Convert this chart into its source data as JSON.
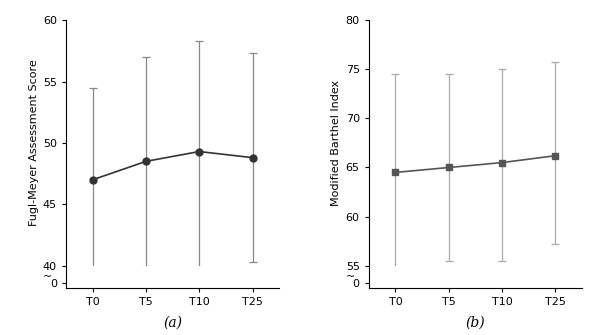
{
  "chart_a": {
    "x_labels": [
      "T0",
      "T5",
      "T10",
      "T25"
    ],
    "means": [
      47.0,
      48.5,
      49.3,
      48.8
    ],
    "errors_upper": [
      7.5,
      8.5,
      9.0,
      8.5
    ],
    "errors_lower": [
      8.5,
      8.5,
      9.5,
      8.5
    ],
    "ylabel": "Fugl-Meyer Assessment Score",
    "xlabel_label": "(a)",
    "ylim_main": [
      40,
      60
    ],
    "yticks_main": [
      40,
      45,
      50,
      55,
      60
    ],
    "marker": "o",
    "markersize": 5,
    "line_color": "#333333",
    "error_color": "#888888",
    "capsize": 3
  },
  "chart_b": {
    "x_labels": [
      "T0",
      "T5",
      "T10",
      "T25"
    ],
    "means": [
      64.5,
      65.0,
      65.5,
      66.2
    ],
    "errors_upper": [
      10.0,
      9.5,
      9.5,
      9.5
    ],
    "errors_lower": [
      10.0,
      9.5,
      10.0,
      9.0
    ],
    "ylabel": "Modified Barthel Index",
    "xlabel_label": "(b)",
    "ylim_main": [
      55,
      80
    ],
    "yticks_main": [
      55,
      60,
      65,
      70,
      75,
      80
    ],
    "marker": "s",
    "markersize": 5,
    "line_color": "#555555",
    "error_color": "#aaaaaa",
    "capsize": 3
  },
  "background_color": "#ffffff",
  "fig_width": 6.0,
  "fig_height": 3.35
}
